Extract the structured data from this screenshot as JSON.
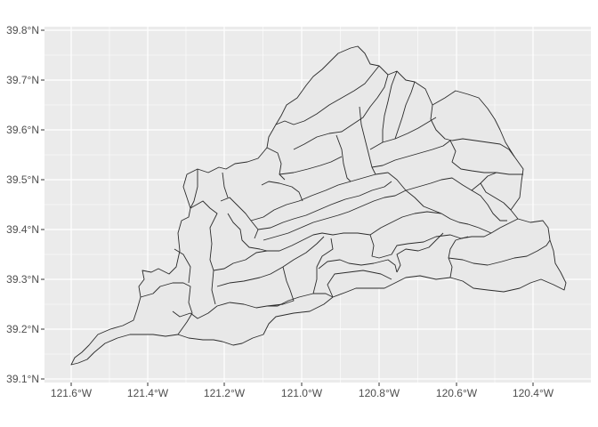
{
  "map": {
    "panel_color": "#ebebeb",
    "grid_color": "#ffffff",
    "polygon_fill": "#e8e8e8",
    "polygon_stroke": "#2b2b2b",
    "lat_labels": [
      "39.8°N",
      "39.7°N",
      "39.6°N",
      "39.5°N",
      "39.4°N",
      "39.3°N",
      "39.2°N",
      "39.1°N"
    ],
    "lon_labels": [
      "121.6°W",
      "121.4°W",
      "121.2°W",
      "121.0°W",
      "120.8°W",
      "120.6°W",
      "120.4°W"
    ]
  }
}
